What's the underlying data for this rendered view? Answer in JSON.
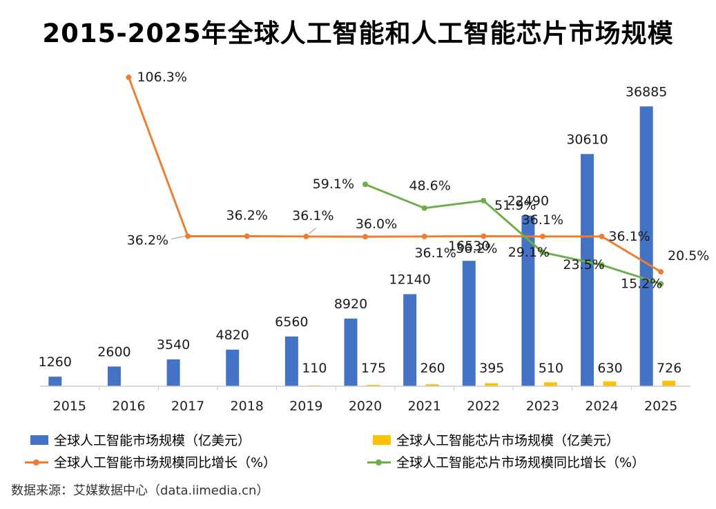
{
  "title": "2015-2025年全球人工智能和人工智能芯片市场规模",
  "source": "数据来源：艾媒数据中心（data.iimedia.cn）",
  "chart_data": {
    "type": "bar",
    "categories": [
      "2015",
      "2016",
      "2017",
      "2018",
      "2019",
      "2020",
      "2021",
      "2022",
      "2023",
      "2024",
      "2025"
    ],
    "series": [
      {
        "name": "全球人工智能市场规模（亿美元）",
        "type": "bar",
        "axis": "left",
        "color": "#4472C4",
        "values": [
          1260,
          2600,
          3540,
          4820,
          6560,
          8920,
          12140,
          16530,
          22490,
          30610,
          36885
        ],
        "labels": [
          "1260",
          "2600",
          "3540",
          "4820",
          "6560",
          "8920",
          "12140",
          "16530",
          "22490",
          "30610",
          "36885"
        ]
      },
      {
        "name": "全球人工智能芯片市场规模（亿美元）",
        "type": "bar",
        "axis": "left",
        "color": "#FFC000",
        "values": [
          null,
          null,
          null,
          null,
          110,
          175,
          260,
          395,
          510,
          630,
          726
        ],
        "labels": [
          null,
          null,
          null,
          null,
          "110",
          "175",
          "260",
          "395",
          "510",
          "630",
          "726"
        ]
      },
      {
        "name": "全球人工智能市场规模同比增长（%）",
        "type": "line",
        "axis": "right",
        "color": "#ED7D31",
        "values": [
          null,
          106.3,
          36.2,
          36.2,
          36.1,
          36.0,
          36.1,
          36.2,
          36.1,
          36.1,
          20.5
        ],
        "labels": [
          null,
          "106.3%",
          "36.2%",
          "36.2%",
          "36.1%",
          "36.0%",
          "36.1%",
          "36.2%",
          "36.1%",
          "36.1%",
          "20.5%"
        ]
      },
      {
        "name": "全球人工智能芯片市场规模同比增长（%）",
        "type": "line",
        "axis": "right",
        "color": "#70AD47",
        "values": [
          null,
          null,
          null,
          null,
          null,
          59.1,
          48.6,
          51.9,
          29.1,
          23.5,
          15.2
        ],
        "labels": [
          null,
          null,
          null,
          null,
          null,
          "59.1%",
          "48.6%",
          "51.9%",
          "29.1%",
          "23.5%",
          "15.2%"
        ]
      }
    ],
    "ylim_left": [
      0,
      40000
    ],
    "ylim_right": [
      -30,
      110
    ],
    "grid": false,
    "legend_position": "bottom"
  }
}
